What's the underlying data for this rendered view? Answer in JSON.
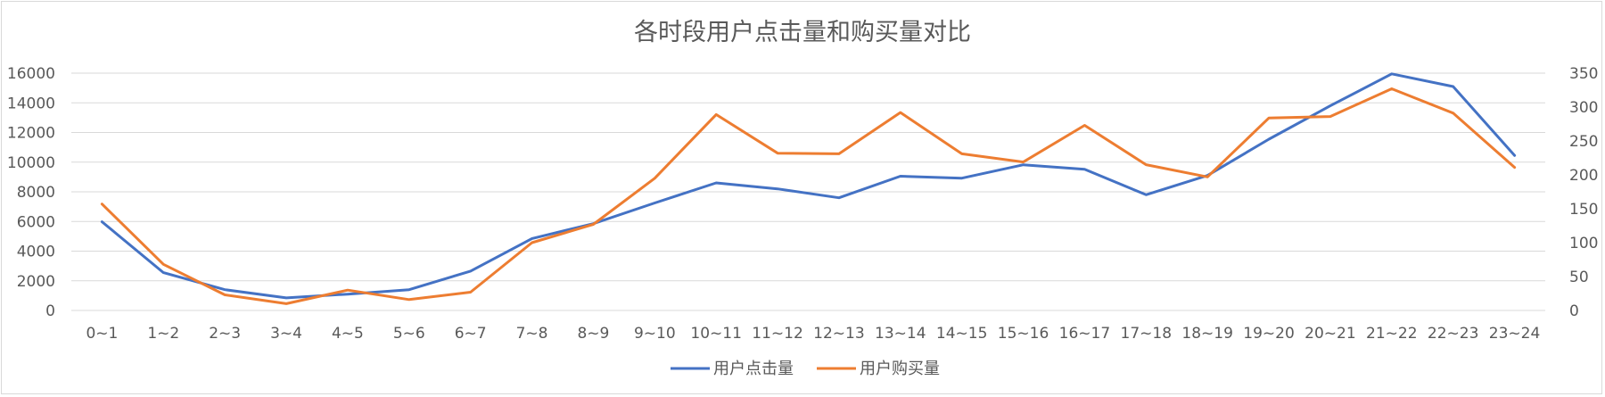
{
  "chart_data": {
    "type": "line",
    "title": "各时段用户点击量和购买量对比",
    "categories": [
      "0~1",
      "1~2",
      "2~3",
      "3~4",
      "4~5",
      "5~6",
      "6~7",
      "7~8",
      "8~9",
      "9~10",
      "10~11",
      "11~12",
      "12~13",
      "13~14",
      "14~15",
      "15~16",
      "16~17",
      "17~18",
      "18~19",
      "19~20",
      "20~21",
      "21~22",
      "22~23",
      "23~24"
    ],
    "y_left": {
      "min": 0,
      "max": 16000,
      "ticks": [
        "0",
        "2000",
        "4000",
        "6000",
        "8000",
        "10000",
        "12000",
        "14000",
        "16000"
      ]
    },
    "y_right": {
      "min": 0,
      "max": 350,
      "ticks": [
        "0",
        "50",
        "100",
        "150",
        "200",
        "250",
        "300",
        "350"
      ]
    },
    "grid": true,
    "legend_position": "bottom",
    "series": [
      {
        "name": "用户点击量",
        "axis": "left",
        "color": "#4472C4",
        "values": [
          5980,
          2550,
          1400,
          850,
          1100,
          1400,
          2650,
          4850,
          5850,
          7250,
          8600,
          8200,
          7600,
          9050,
          8920,
          9820,
          9520,
          7800,
          9100,
          11550,
          13800,
          15950,
          15100,
          10450
        ]
      },
      {
        "name": "用户购买量",
        "axis": "right",
        "color": "#ED7D31",
        "values": [
          157,
          68,
          23,
          10,
          30,
          16,
          27,
          100,
          127,
          195,
          289,
          232,
          231,
          292,
          231,
          219,
          273,
          215,
          197,
          284,
          286,
          327,
          291,
          211
        ]
      }
    ]
  }
}
